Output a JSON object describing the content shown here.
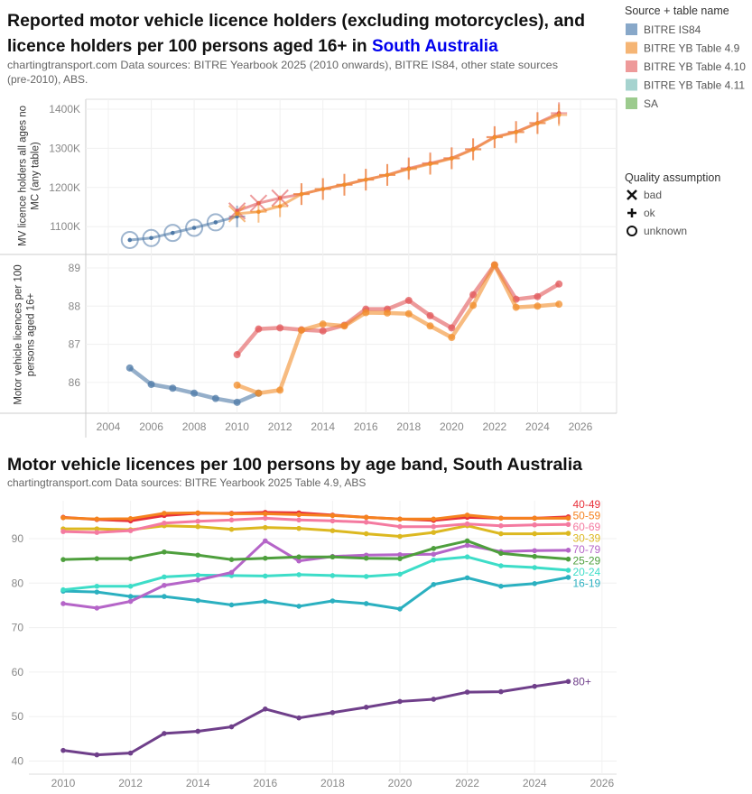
{
  "chart1": {
    "title_part1": "Reported motor vehicle licence holders (excluding motorcycles), and",
    "title_part2": "licence holders per 100 persons aged 16+ in ",
    "title_region": "South Australia",
    "region_color": "#0000ee",
    "subtitle_line1": "chartingtransport.com  Data sources: BITRE Yearbook 2025 (2010 onwards), BITRE IS84, other state sources",
    "subtitle_line2": "(pre-2010), ABS.",
    "legend_source": {
      "title": "Source + table name",
      "items": [
        {
          "label": "BITRE IS84",
          "color": "#88a8c9"
        },
        {
          "label": "BITRE YB Table 4.9",
          "color": "#f5b575"
        },
        {
          "label": "BITRE YB Table 4.10",
          "color": "#ee9a9a"
        },
        {
          "label": "BITRE YB Table 4.11",
          "color": "#a6d3cf"
        },
        {
          "label": "SA",
          "color": "#9ccb8e"
        }
      ]
    },
    "legend_quality": {
      "title": "Quality assumption",
      "items": [
        {
          "label": "bad",
          "icon": "x-mark-icon"
        },
        {
          "label": "ok",
          "icon": "plus-icon"
        },
        {
          "label": "unknown",
          "icon": "circle-icon"
        }
      ]
    }
  },
  "chart_data": [
    {
      "type": "line",
      "title": "",
      "ylabel": "MV licence holders all ages no MC (any table)",
      "xlim": [
        2003,
        2027
      ],
      "ylim": [
        1040,
        1410
      ],
      "xticks": [
        "2004",
        "2006",
        "2008",
        "2010",
        "2012",
        "2014",
        "2016",
        "2018",
        "2020",
        "2022",
        "2024",
        "2026"
      ],
      "yticks": [
        "1100K",
        "1200K",
        "1300K",
        "1400K"
      ],
      "ytick_values": [
        1100,
        1200,
        1300,
        1400
      ],
      "unit": "thousands",
      "series": [
        {
          "name": "BITRE IS84",
          "color": "#4e79a7",
          "x": [
            2005,
            2006,
            2007,
            2008,
            2009,
            2010
          ],
          "y": [
            1066,
            1071,
            1084,
            1097,
            1111,
            1126
          ],
          "quality": [
            "unknown",
            "unknown",
            "unknown",
            "unknown",
            "unknown",
            "ok"
          ]
        },
        {
          "name": "BITRE YB Table 4.10",
          "color": "#e15759",
          "x": [
            2010,
            2011,
            2012,
            2013,
            2014,
            2015,
            2016,
            2017,
            2018,
            2019,
            2020,
            2021,
            2022,
            2023,
            2024,
            2025
          ],
          "y": [
            1140,
            1160,
            1173,
            1183,
            1196,
            1207,
            1220,
            1232,
            1249,
            1262,
            1275,
            1298,
            1329,
            1342,
            1365,
            1390
          ],
          "quality": [
            "bad",
            "bad",
            "bad",
            "ok",
            "ok",
            "ok",
            "ok",
            "ok",
            "ok",
            "ok",
            "ok",
            "ok",
            "ok",
            "ok",
            "ok",
            "ok"
          ]
        },
        {
          "name": "BITRE YB Table 4.9",
          "color": "#f28e2b",
          "x": [
            2010,
            2011,
            2012,
            2013,
            2014,
            2015,
            2016,
            2017,
            2018,
            2019,
            2020,
            2021,
            2022,
            2023,
            2024,
            2025
          ],
          "y": [
            1133,
            1138,
            1152,
            1183,
            1196,
            1207,
            1220,
            1232,
            1247,
            1260,
            1274,
            1297,
            1328,
            1341,
            1364,
            1385
          ],
          "quality": [
            "bad",
            "ok",
            "ok",
            "ok",
            "ok",
            "ok",
            "ok",
            "ok",
            "ok",
            "ok",
            "ok",
            "ok",
            "ok",
            "ok",
            "ok",
            "ok"
          ]
        }
      ]
    },
    {
      "type": "line",
      "title": "",
      "ylabel": "Motor vehicle licences per 100 persons aged 16+",
      "xlim": [
        2003,
        2027
      ],
      "ylim": [
        85.2,
        89.2
      ],
      "yticks": [
        "86",
        "87",
        "88",
        "89"
      ],
      "ytick_values": [
        86,
        87,
        88,
        89
      ],
      "series": [
        {
          "name": "BITRE IS84",
          "color": "#4e79a7",
          "x": [
            2005,
            2006,
            2007,
            2008,
            2009,
            2010,
            2011
          ],
          "y": [
            86.38,
            85.95,
            85.85,
            85.72,
            85.58,
            85.48,
            85.72
          ]
        },
        {
          "name": "BITRE YB Table 4.10",
          "color": "#e15759",
          "x": [
            2010,
            2011,
            2012,
            2013,
            2014,
            2015,
            2016,
            2017,
            2018,
            2019,
            2020,
            2021,
            2022,
            2023,
            2024,
            2025
          ],
          "y": [
            86.73,
            87.4,
            87.43,
            87.38,
            87.35,
            87.5,
            87.92,
            87.92,
            88.15,
            87.75,
            87.43,
            88.3,
            89.08,
            88.18,
            88.25,
            88.58
          ]
        },
        {
          "name": "BITRE YB Table 4.9",
          "color": "#f28e2b",
          "x": [
            2010,
            2011,
            2012,
            2013,
            2014,
            2015,
            2016,
            2017,
            2018,
            2019,
            2020,
            2021,
            2022,
            2023,
            2024,
            2025
          ],
          "y": [
            85.93,
            85.72,
            85.8,
            87.37,
            87.53,
            87.48,
            87.83,
            87.82,
            87.8,
            87.48,
            87.18,
            88.02,
            89.08,
            87.97,
            88.0,
            88.05
          ]
        }
      ]
    },
    {
      "type": "line",
      "title": "Motor vehicle licences per 100 persons by age band, South Australia",
      "subtitle": "chartingtransport.com  Data sources: BITRE Yearbook 2025 Table 4.9, ABS",
      "xlim": [
        2009,
        2026
      ],
      "ylim": [
        39,
        97
      ],
      "xticks": [
        "2010",
        "2012",
        "2014",
        "2016",
        "2018",
        "2020",
        "2022",
        "2024",
        "2026"
      ],
      "yticks": [
        "40",
        "50",
        "60",
        "70",
        "80",
        "90"
      ],
      "ytick_values": [
        40,
        50,
        60,
        70,
        80,
        90
      ],
      "x": [
        2010,
        2011,
        2012,
        2013,
        2014,
        2015,
        2016,
        2017,
        2018,
        2019,
        2020,
        2021,
        2022,
        2023,
        2024,
        2025
      ],
      "series": [
        {
          "name": "80+",
          "color": "#6f3f8a",
          "values": [
            42.4,
            41.4,
            41.8,
            46.2,
            46.7,
            47.7,
            51.7,
            49.7,
            50.9,
            52.1,
            53.4,
            53.9,
            55.5,
            55.6,
            56.8,
            57.9
          ]
        },
        {
          "name": "16-19",
          "color": "#2bb0c0",
          "values": [
            78.2,
            78.0,
            77.0,
            77.0,
            76.1,
            75.1,
            75.9,
            74.8,
            76.0,
            75.4,
            74.2,
            79.7,
            81.2,
            79.3,
            79.9,
            81.3
          ]
        },
        {
          "name": "20-24",
          "color": "#3dddc8",
          "values": [
            78.5,
            79.3,
            79.3,
            81.4,
            81.8,
            81.7,
            81.6,
            81.9,
            81.7,
            81.5,
            82.0,
            85.2,
            85.9,
            83.9,
            83.5,
            82.9
          ]
        },
        {
          "name": "70-79",
          "color": "#b565c8",
          "values": [
            75.4,
            74.4,
            75.9,
            79.5,
            80.7,
            82.4,
            89.5,
            85.0,
            86.0,
            86.3,
            86.4,
            86.5,
            88.5,
            87.1,
            87.3,
            87.4
          ]
        },
        {
          "name": "25-29",
          "color": "#4e9f3d",
          "values": [
            85.3,
            85.5,
            85.5,
            87.0,
            86.3,
            85.3,
            85.6,
            85.9,
            85.9,
            85.6,
            85.5,
            87.8,
            89.5,
            86.7,
            86.0,
            85.4
          ]
        },
        {
          "name": "30-39",
          "color": "#dcb820",
          "values": [
            92.2,
            92.2,
            92.0,
            92.9,
            92.7,
            92.1,
            92.5,
            92.3,
            91.8,
            91.1,
            90.5,
            91.4,
            92.9,
            91.1,
            91.1,
            91.2
          ]
        },
        {
          "name": "60-69",
          "color": "#f47aa0",
          "values": [
            91.6,
            91.4,
            91.8,
            93.5,
            93.9,
            94.2,
            94.6,
            94.2,
            94.0,
            93.7,
            92.7,
            92.7,
            93.3,
            92.9,
            93.1,
            93.2
          ]
        },
        {
          "name": "40-49",
          "color": "#e8303a",
          "values": [
            94.8,
            94.3,
            94.0,
            95.2,
            95.7,
            95.7,
            95.9,
            95.8,
            95.3,
            94.8,
            94.4,
            94.1,
            94.8,
            94.6,
            94.6,
            94.9
          ]
        },
        {
          "name": "50-59",
          "color": "#f5821f",
          "values": [
            94.7,
            94.4,
            94.5,
            95.7,
            95.8,
            95.6,
            95.6,
            95.4,
            95.2,
            94.8,
            94.4,
            94.4,
            95.3,
            94.6,
            94.6,
            94.6
          ]
        }
      ]
    }
  ]
}
